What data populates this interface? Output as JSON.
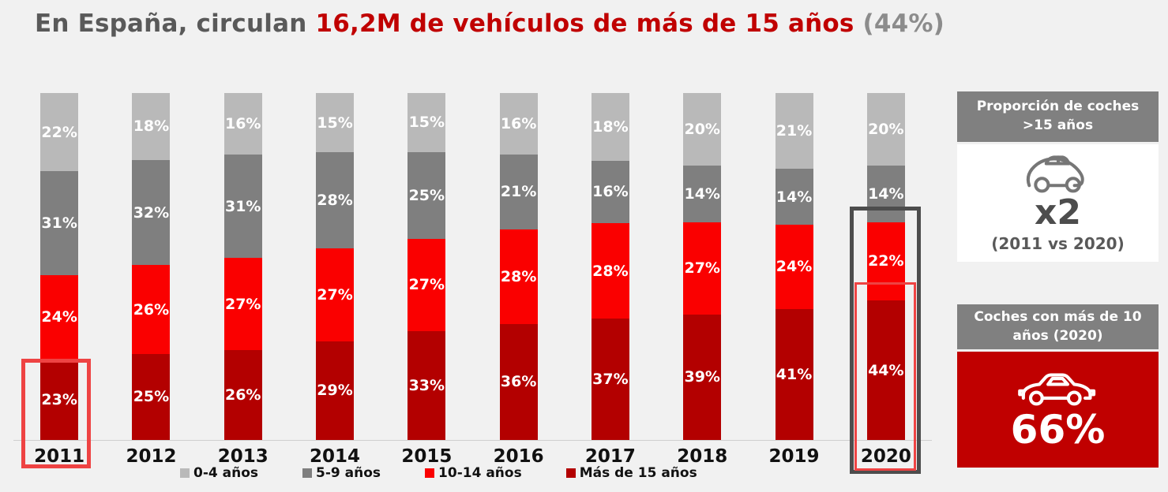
{
  "title": {
    "segments": [
      {
        "text": "En España, circulan ",
        "color": "#595959"
      },
      {
        "text": "16,2M de vehículos de más de 15 años",
        "color": "#c00000"
      },
      {
        "text": " (44%)",
        "color": "#8c8c8c"
      }
    ]
  },
  "chart_data": {
    "type": "bar",
    "stacked": true,
    "orientation": "vertical",
    "categories": [
      "2011",
      "2012",
      "2013",
      "2014",
      "2015",
      "2016",
      "2017",
      "2018",
      "2019",
      "2020"
    ],
    "series": [
      {
        "name": "0-4 años",
        "color": "#b9b9b9",
        "values": [
          22,
          18,
          16,
          15,
          15,
          16,
          18,
          20,
          21,
          20
        ]
      },
      {
        "name": "5-9 años",
        "color": "#7f7f7f",
        "values": [
          31,
          32,
          31,
          28,
          25,
          21,
          16,
          14,
          14,
          14
        ]
      },
      {
        "name": "10-14 años",
        "color": "#fa0000",
        "values": [
          24,
          26,
          27,
          27,
          27,
          28,
          28,
          27,
          24,
          22
        ]
      },
      {
        "name": "Más de 15 años",
        "color": "#b30000",
        "values": [
          23,
          25,
          26,
          29,
          33,
          36,
          37,
          39,
          41,
          44
        ]
      }
    ],
    "segment_order_top_to_bottom": [
      "0-4 años",
      "5-9 años",
      "10-14 años",
      "Más de 15 años"
    ],
    "value_suffix": "%",
    "value_labels": "inside-white-bold",
    "legend_position": "bottom",
    "grid": false,
    "annotations": [
      {
        "target": "2011",
        "style": "red-outline",
        "note": "Red rectangle around the 23% 'Más de 15 años' segment and the 2011 axis label"
      },
      {
        "target": "2020",
        "style": "dark-outline",
        "note": "Dark gray rectangle around the 22% + 44% segments and the 2020 axis label"
      },
      {
        "target": "2020",
        "style": "red-outline-inner",
        "note": "Red rectangle inside the dark one, around the 44% 'Más de 15 años' segment"
      }
    ]
  },
  "side_panels": [
    {
      "header": "Proporción de coches >15 años",
      "icon": "car-outline-icon",
      "value": "x2",
      "caption": "(2011 vs 2020)",
      "header_bg": "#808080",
      "body_bg": "#ffffff"
    },
    {
      "header": "Coches con más de 10 años (2020)",
      "icon": "car-outline-icon",
      "value": "66%",
      "header_bg": "#808080",
      "body_bg": "#c00000"
    }
  ],
  "colors": {
    "background": "#f1f1f1",
    "axis_line": "#cfcfcf",
    "highlight_red": "#ee4343",
    "highlight_dark": "#4d4d4d"
  }
}
